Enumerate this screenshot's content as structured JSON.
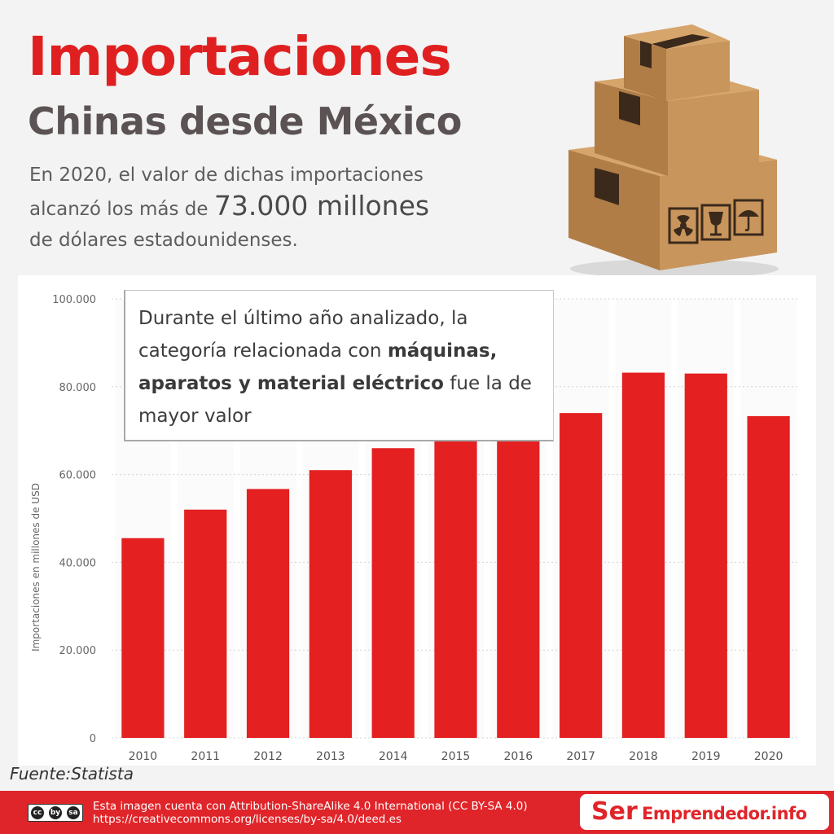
{
  "header": {
    "title": "Importaciones",
    "subtitle": "Chinas desde México",
    "intro_line1": "En 2020, el valor de dichas importaciones",
    "intro_line2_a": "alcanzó los más de ",
    "intro_line2_big": "73.000 millones",
    "intro_line3": "de dólares estadounidenses."
  },
  "illustration": {
    "icons": [
      "cardboard-boxes-icon",
      "radiation-icon",
      "fragile-glass-icon",
      "umbrella-icon"
    ],
    "colors": {
      "box": "#c8955c",
      "box_dark": "#a9743f",
      "tape": "#3b2a1c"
    }
  },
  "callout": {
    "line1": "Durante el último año analizado, la",
    "line2_a": "categoría relacionada con ",
    "line2_b": "máquinas,",
    "line3_a": "aparatos y material eléctrico",
    "line3_b": " fue la de",
    "line4": "mayor valor"
  },
  "chart_data": {
    "type": "bar",
    "categories": [
      "2010",
      "2011",
      "2012",
      "2013",
      "2014",
      "2015",
      "2016",
      "2017",
      "2018",
      "2019",
      "2020"
    ],
    "values": [
      45500,
      52000,
      56700,
      61000,
      66000,
      69700,
      69500,
      74000,
      83200,
      83000,
      73300
    ],
    "ylabel": "Importaciones en millones de USD",
    "ylim": [
      0,
      100000
    ],
    "yticks": [
      0,
      20000,
      40000,
      60000,
      80000,
      100000
    ],
    "ytick_labels": [
      "0",
      "20.000",
      "40.000",
      "60.000",
      "80.000",
      "100.000"
    ],
    "grid": "horizontal dotted",
    "bar_color": "#e42021"
  },
  "source": "Fuente:Statista",
  "footer": {
    "cc_badge": [
      "cc",
      "by",
      "sa"
    ],
    "license_line1": "Esta imagen cuenta con Attribution-ShareAlike 4.0 International (CC BY-SA 4.0)",
    "license_line2": "https://creativecommons.org/licenses/by-sa/4.0/deed.es",
    "brand_a": "Ser",
    "brand_b": "Emprendedor.info",
    "color": "#e0252a"
  }
}
